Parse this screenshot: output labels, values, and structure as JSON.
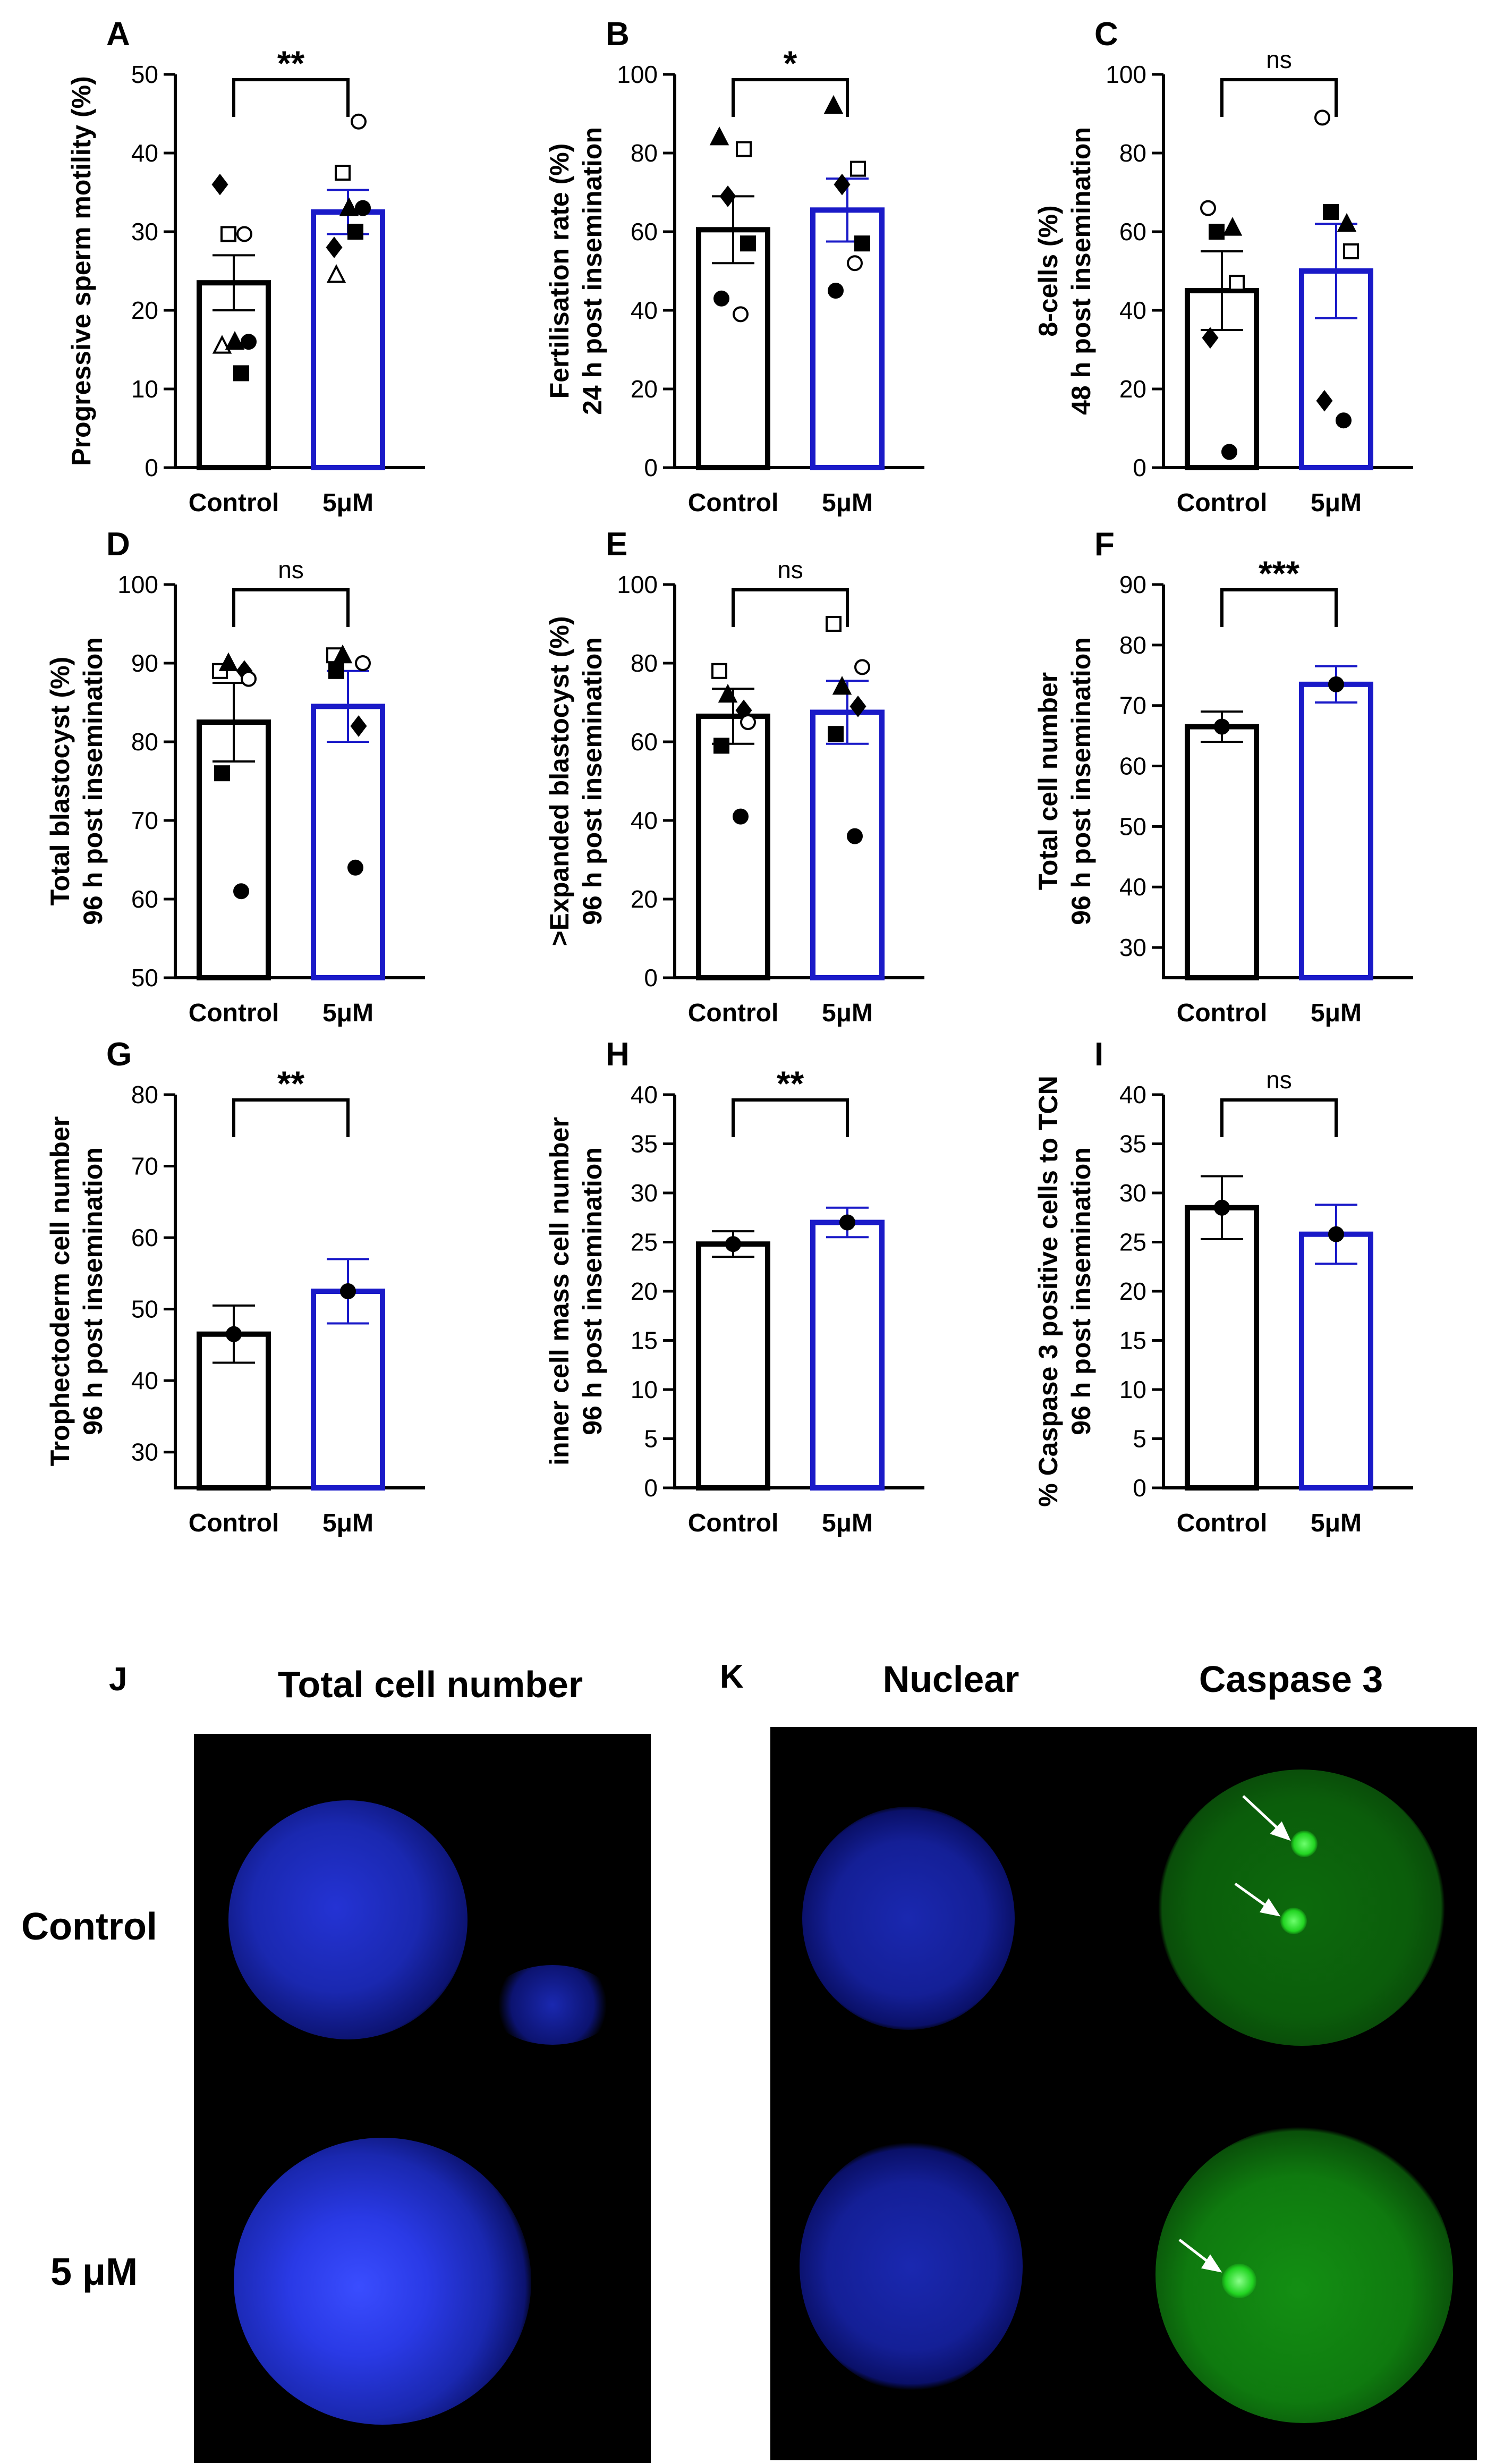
{
  "figure": {
    "panel_letters": {
      "j": "J",
      "k": "K"
    },
    "microscopy": {
      "col_total": "Total cell number",
      "col_nuclear": "Nuclear",
      "col_caspase": "Caspase 3",
      "row_control": "Control",
      "row_treated": "5 μM",
      "colors": {
        "nuclear_stain": "#1a2fe6",
        "caspase_stain": "#22d422",
        "background": "#000000"
      }
    }
  },
  "style": {
    "control_color": "#000000",
    "treated_color": "#1a1ac8"
  },
  "chart_data": [
    {
      "id": "A",
      "type": "bar",
      "letter": "A",
      "categories": [
        "Control",
        "5μM"
      ],
      "ylabel_lines": [
        "Progressive sperm motility (%)"
      ],
      "ylim": [
        0,
        50
      ],
      "yticks": [
        0,
        10,
        20,
        30,
        40,
        50
      ],
      "values": [
        23.5,
        32.5
      ],
      "errors": [
        3.5,
        2.8
      ],
      "points": [
        {
          "shape": "diamond",
          "fill": true,
          "values": [
            36,
            28
          ]
        },
        {
          "shape": "circle",
          "fill": false,
          "values": [
            29.7,
            44
          ]
        },
        {
          "shape": "square",
          "fill": false,
          "values": [
            29.7,
            37.5
          ]
        },
        {
          "shape": "circle",
          "fill": true,
          "values": [
            16,
            33
          ]
        },
        {
          "shape": "triangle",
          "fill": false,
          "values": [
            15.5,
            24.5
          ]
        },
        {
          "shape": "square",
          "fill": true,
          "values": [
            12,
            30
          ]
        },
        {
          "shape": "triangle",
          "fill": true,
          "values": [
            16,
            33
          ]
        }
      ],
      "sig": "**"
    },
    {
      "id": "B",
      "type": "bar",
      "letter": "B",
      "categories": [
        "Control",
        "5μM"
      ],
      "ylabel_lines": [
        "Fertilisation rate (%)",
        "24 h post insemination"
      ],
      "ylim": [
        0,
        100
      ],
      "yticks": [
        0,
        20,
        40,
        60,
        80,
        100
      ],
      "values": [
        60.5,
        65.5
      ],
      "errors": [
        8.5,
        8.0
      ],
      "points": [
        {
          "shape": "triangle",
          "fill": true,
          "values": [
            84,
            92
          ]
        },
        {
          "shape": "square",
          "fill": false,
          "values": [
            81,
            76
          ]
        },
        {
          "shape": "diamond",
          "fill": true,
          "values": [
            69,
            72
          ]
        },
        {
          "shape": "square",
          "fill": true,
          "values": [
            57,
            57
          ]
        },
        {
          "shape": "circle",
          "fill": true,
          "values": [
            43,
            45
          ]
        },
        {
          "shape": "circle",
          "fill": false,
          "values": [
            39,
            52
          ]
        }
      ],
      "sig": "*"
    },
    {
      "id": "C",
      "type": "bar",
      "letter": "C",
      "categories": [
        "Control",
        "5μM"
      ],
      "ylabel_lines": [
        "8-cells (%)",
        "48 h post insemination"
      ],
      "ylim": [
        0,
        100
      ],
      "yticks": [
        0,
        20,
        40,
        60,
        80,
        100
      ],
      "values": [
        45,
        50
      ],
      "errors": [
        10,
        12
      ],
      "points": [
        {
          "shape": "circle",
          "fill": false,
          "values": [
            66,
            89
          ]
        },
        {
          "shape": "triangle",
          "fill": true,
          "values": [
            61,
            62
          ]
        },
        {
          "shape": "square",
          "fill": true,
          "values": [
            60,
            65
          ]
        },
        {
          "shape": "square",
          "fill": false,
          "values": [
            47,
            55
          ]
        },
        {
          "shape": "diamond",
          "fill": true,
          "values": [
            33,
            17
          ]
        },
        {
          "shape": "circle",
          "fill": true,
          "values": [
            4,
            12
          ]
        }
      ],
      "sig": "ns"
    },
    {
      "id": "D",
      "type": "bar",
      "letter": "D",
      "categories": [
        "Control",
        "5μM"
      ],
      "ylabel_lines": [
        "Total blastocyst (%)",
        "96 h post insemination"
      ],
      "ylim": [
        50,
        100
      ],
      "yticks": [
        50,
        60,
        70,
        80,
        90,
        100
      ],
      "values": [
        82.5,
        84.5
      ],
      "errors": [
        5,
        4.5
      ],
      "points": [
        {
          "shape": "square",
          "fill": false,
          "values": [
            89,
            91
          ]
        },
        {
          "shape": "diamond",
          "fill": true,
          "values": [
            89,
            82
          ]
        },
        {
          "shape": "triangle",
          "fill": true,
          "values": [
            90,
            91
          ]
        },
        {
          "shape": "circle",
          "fill": false,
          "values": [
            88,
            90
          ]
        },
        {
          "shape": "square",
          "fill": true,
          "values": [
            76,
            89
          ]
        },
        {
          "shape": "circle",
          "fill": true,
          "values": [
            61,
            64
          ]
        }
      ],
      "sig": "ns"
    },
    {
      "id": "E",
      "type": "bar",
      "letter": "E",
      "categories": [
        "Control",
        "5μM"
      ],
      "ylabel_lines": [
        ">Expanded blastocyst  (%)",
        "96 h post insemination"
      ],
      "ylim": [
        0,
        100
      ],
      "yticks": [
        0,
        20,
        40,
        60,
        80,
        100
      ],
      "values": [
        66.5,
        67.5
      ],
      "errors": [
        7,
        8
      ],
      "points": [
        {
          "shape": "square",
          "fill": false,
          "values": [
            78,
            90
          ]
        },
        {
          "shape": "diamond",
          "fill": true,
          "values": [
            68,
            69
          ]
        },
        {
          "shape": "triangle",
          "fill": true,
          "values": [
            72,
            74
          ]
        },
        {
          "shape": "circle",
          "fill": false,
          "values": [
            65,
            79
          ]
        },
        {
          "shape": "square",
          "fill": true,
          "values": [
            59,
            62
          ]
        },
        {
          "shape": "circle",
          "fill": true,
          "values": [
            41,
            36
          ]
        }
      ],
      "sig": "ns"
    },
    {
      "id": "F",
      "type": "bar",
      "letter": "F",
      "categories": [
        "Control",
        "5μM"
      ],
      "ylabel_lines": [
        "Total cell number",
        "96 h post insemination"
      ],
      "ylim": [
        25,
        90
      ],
      "yticks": [
        30,
        40,
        50,
        60,
        70,
        80,
        90
      ],
      "values": [
        66.5,
        73.5
      ],
      "errors": [
        2.5,
        3
      ],
      "points": [
        {
          "shape": "circle",
          "fill": true,
          "values": [
            66.5,
            73.5
          ]
        }
      ],
      "sig": "***"
    },
    {
      "id": "G",
      "type": "bar",
      "letter": "G",
      "categories": [
        "Control",
        "5μM"
      ],
      "ylabel_lines": [
        "Trophectoderm cell number",
        "96 h post insemination"
      ],
      "ylim": [
        25,
        80
      ],
      "yticks": [
        30,
        40,
        50,
        60,
        70,
        80
      ],
      "values": [
        46.5,
        52.5
      ],
      "errors": [
        4,
        4.5
      ],
      "points": [
        {
          "shape": "circle",
          "fill": true,
          "values": [
            46.5,
            52.5
          ]
        }
      ],
      "sig": "**"
    },
    {
      "id": "H",
      "type": "bar",
      "letter": "H",
      "categories": [
        "Control",
        "5μM"
      ],
      "ylabel_lines": [
        "inner cell mass cell number",
        "96 h post insemination"
      ],
      "ylim": [
        0,
        40
      ],
      "yticks": [
        0,
        5,
        10,
        15,
        20,
        25,
        30,
        35,
        40
      ],
      "values": [
        24.8,
        27.0
      ],
      "errors": [
        1.3,
        1.5
      ],
      "points": [
        {
          "shape": "circle",
          "fill": true,
          "values": [
            24.8,
            27.0
          ]
        }
      ],
      "sig": "**"
    },
    {
      "id": "I",
      "type": "bar",
      "letter": "I",
      "categories": [
        "Control",
        "5μM"
      ],
      "ylabel_lines": [
        "% Caspase 3 positive cells to TCN",
        "96 h post insemination"
      ],
      "ylim": [
        0,
        40
      ],
      "yticks": [
        0,
        5,
        10,
        15,
        20,
        25,
        30,
        35,
        40
      ],
      "values": [
        28.5,
        25.8
      ],
      "errors": [
        3.2,
        3.0
      ],
      "points": [
        {
          "shape": "circle",
          "fill": true,
          "values": [
            28.5,
            25.8
          ]
        }
      ],
      "sig": "ns"
    }
  ]
}
